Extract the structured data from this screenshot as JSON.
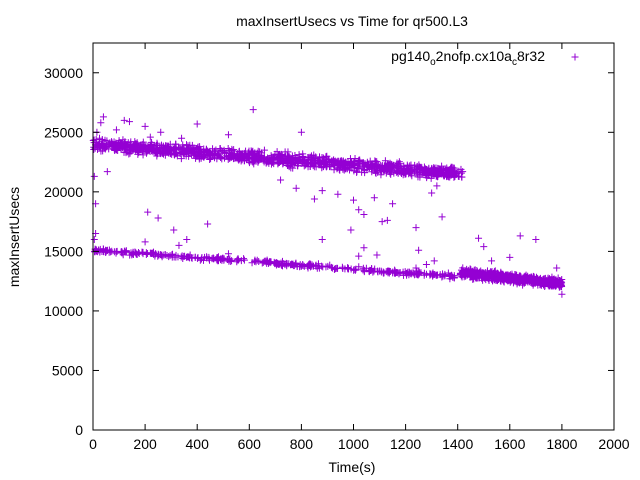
{
  "chart_data": {
    "type": "scatter",
    "title": "maxInsertUsecs vs Time for qr500.L3",
    "xlabel": "Time(s)",
    "ylabel": "maxInsertUsecs",
    "xlim": [
      0,
      2000
    ],
    "ylim": [
      0,
      32500
    ],
    "xticks": [
      0,
      200,
      400,
      600,
      800,
      1000,
      1200,
      1400,
      1600,
      1800,
      2000
    ],
    "yticks": [
      0,
      5000,
      10000,
      15000,
      20000,
      25000,
      30000
    ],
    "grid": false,
    "legend_position": "top-right",
    "marker": "plus",
    "series": [
      {
        "name": "pg140_o2nofp.cx10a_c8r32",
        "legend_main": "pg140",
        "legend_sub1": "o",
        "legend_mid": "2nofp.cx10a",
        "legend_sub2": "c",
        "legend_end": "8r32",
        "color": "#9400d3",
        "trends": [
          {
            "x_start": 0,
            "x_end": 1420,
            "y_start": 24000,
            "y_end": 21500,
            "jitter": 700,
            "count": 1200
          },
          {
            "x_start": 0,
            "x_end": 1400,
            "y_start": 15100,
            "y_end": 12900,
            "jitter": 250,
            "count": 380
          },
          {
            "x_start": 1410,
            "x_end": 1800,
            "y_start": 13200,
            "y_end": 12300,
            "jitter": 500,
            "count": 600
          }
        ],
        "points": [
          [
            5,
            21300
          ],
          [
            10,
            19000
          ],
          [
            15,
            25000
          ],
          [
            25,
            24500
          ],
          [
            30,
            25800
          ],
          [
            40,
            26300
          ],
          [
            55,
            21700
          ],
          [
            90,
            25200
          ],
          [
            120,
            26000
          ],
          [
            140,
            25900
          ],
          [
            200,
            25500
          ],
          [
            220,
            24600
          ],
          [
            260,
            25000
          ],
          [
            340,
            24500
          ],
          [
            400,
            25700
          ],
          [
            520,
            24800
          ],
          [
            615,
            26900
          ],
          [
            800,
            25000
          ],
          [
            720,
            21000
          ],
          [
            780,
            20300
          ],
          [
            850,
            19400
          ],
          [
            880,
            20100
          ],
          [
            940,
            19800
          ],
          [
            1000,
            19300
          ],
          [
            1020,
            18500
          ],
          [
            1040,
            18100
          ],
          [
            1080,
            19500
          ],
          [
            1110,
            17500
          ],
          [
            1130,
            17600
          ],
          [
            1150,
            19000
          ],
          [
            1300,
            19900
          ],
          [
            1320,
            20500
          ],
          [
            5,
            16000
          ],
          [
            10,
            16500
          ],
          [
            210,
            18300
          ],
          [
            250,
            17800
          ],
          [
            310,
            16800
          ],
          [
            330,
            15500
          ],
          [
            360,
            16000
          ],
          [
            440,
            17300
          ],
          [
            200,
            15800
          ],
          [
            520,
            14800
          ],
          [
            880,
            16000
          ],
          [
            990,
            16800
          ],
          [
            1020,
            14600
          ],
          [
            1040,
            15300
          ],
          [
            1090,
            14700
          ],
          [
            1240,
            13600
          ],
          [
            1250,
            15100
          ],
          [
            1280,
            13900
          ],
          [
            1310,
            14200
          ],
          [
            1340,
            17900
          ],
          [
            1370,
            12700
          ],
          [
            1240,
            17000
          ],
          [
            1480,
            16100
          ],
          [
            1500,
            15400
          ],
          [
            1530,
            14200
          ],
          [
            1640,
            16300
          ],
          [
            1700,
            16000
          ],
          [
            1800,
            11400
          ],
          [
            1600,
            14500
          ],
          [
            1780,
            13600
          ]
        ]
      }
    ]
  }
}
